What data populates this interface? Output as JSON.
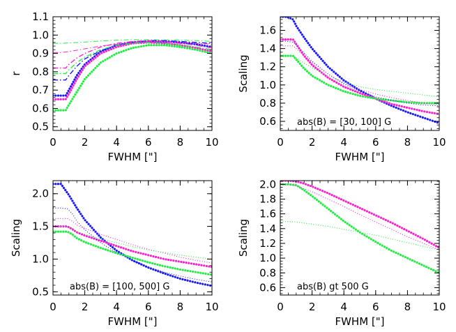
{
  "colors": {
    "blue": "#1a1aff",
    "magenta": "#ff22cc",
    "green": "#22ee44",
    "axis": "#000000"
  },
  "chart_data": [
    {
      "type": "line",
      "title": "",
      "xlabel": "FWHM [\"]",
      "ylabel": "r",
      "annotation": "",
      "xlim": [
        0,
        10
      ],
      "ylim": [
        0.48,
        1.1
      ],
      "xticks": [
        0,
        2,
        4,
        6,
        8,
        10
      ],
      "yticks": [
        0.5,
        0.6,
        0.7,
        0.8,
        0.9,
        1.0,
        1.1
      ],
      "ytick_labels": [
        "0.5",
        "0.6",
        "0.7",
        "0.8",
        "0.9",
        "1.0",
        "1.1"
      ],
      "series": [
        {
          "color": "blue",
          "style": "thick-dotted",
          "x": [
            0,
            0.5,
            0.8,
            1.0,
            1.5,
            2,
            3,
            4,
            5,
            6,
            7,
            8,
            9,
            10
          ],
          "y": [
            0.67,
            0.67,
            0.67,
            0.7,
            0.78,
            0.84,
            0.91,
            0.945,
            0.96,
            0.965,
            0.965,
            0.96,
            0.95,
            0.935
          ]
        },
        {
          "color": "magenta",
          "style": "thick-dotted",
          "x": [
            0,
            0.5,
            0.8,
            1.0,
            1.5,
            2,
            3,
            4,
            5,
            6,
            7,
            8,
            9,
            10
          ],
          "y": [
            0.65,
            0.65,
            0.65,
            0.68,
            0.76,
            0.83,
            0.9,
            0.935,
            0.955,
            0.96,
            0.955,
            0.945,
            0.93,
            0.91
          ]
        },
        {
          "color": "green",
          "style": "thick-dotted",
          "x": [
            0,
            0.5,
            0.8,
            1.0,
            1.5,
            2,
            3,
            4,
            5,
            6,
            7,
            8,
            9,
            10
          ],
          "y": [
            0.59,
            0.59,
            0.59,
            0.62,
            0.69,
            0.76,
            0.85,
            0.9,
            0.93,
            0.945,
            0.945,
            0.935,
            0.92,
            0.9
          ]
        },
        {
          "color": "blue",
          "style": "dash-dot",
          "x": [
            0,
            0.5,
            0.8,
            1.0,
            1.5,
            2,
            3,
            4,
            5,
            6,
            7,
            8,
            9,
            10
          ],
          "y": [
            0.755,
            0.755,
            0.755,
            0.78,
            0.83,
            0.87,
            0.915,
            0.945,
            0.96,
            0.97,
            0.97,
            0.965,
            0.96,
            0.955
          ]
        },
        {
          "color": "magenta",
          "style": "dash-dot",
          "x": [
            0,
            0.5,
            0.8,
            1.0,
            1.5,
            2,
            3,
            4,
            5,
            6,
            7,
            8,
            9,
            10
          ],
          "y": [
            0.82,
            0.82,
            0.82,
            0.84,
            0.875,
            0.9,
            0.935,
            0.955,
            0.965,
            0.97,
            0.965,
            0.955,
            0.945,
            0.93
          ]
        },
        {
          "color": "green",
          "style": "dash-dot",
          "x": [
            0,
            0.5,
            0.8,
            1.0,
            1.5,
            2,
            3,
            4,
            5,
            6,
            7,
            8,
            9,
            10
          ],
          "y": [
            0.79,
            0.79,
            0.79,
            0.81,
            0.85,
            0.88,
            0.92,
            0.945,
            0.955,
            0.96,
            0.955,
            0.945,
            0.935,
            0.92
          ]
        },
        {
          "color": "magenta",
          "style": "thin-dash-dot",
          "x": [
            0,
            0.5,
            1,
            2,
            3,
            4,
            5,
            6,
            7,
            8,
            9,
            10
          ],
          "y": [
            0.905,
            0.905,
            0.91,
            0.925,
            0.94,
            0.95,
            0.96,
            0.965,
            0.965,
            0.96,
            0.955,
            0.95
          ]
        },
        {
          "color": "green",
          "style": "thin-dash-dot",
          "x": [
            0,
            0.5,
            1,
            2,
            3,
            4,
            5,
            6,
            7,
            8,
            9,
            10
          ],
          "y": [
            0.955,
            0.955,
            0.957,
            0.962,
            0.968,
            0.972,
            0.975,
            0.975,
            0.974,
            0.972,
            0.97,
            0.965
          ]
        }
      ]
    },
    {
      "type": "line",
      "title": "",
      "xlabel": "FWHM [\"]",
      "ylabel": "Scaling",
      "annotation": "abs(B) = [30, 100] G",
      "xlim": [
        0,
        10
      ],
      "ylim": [
        0.5,
        1.75
      ],
      "xticks": [
        0,
        2,
        4,
        6,
        8,
        10
      ],
      "yticks": [
        0.6,
        0.8,
        1.0,
        1.2,
        1.4,
        1.6
      ],
      "ytick_labels": [
        "0.6",
        "0.8",
        "1.0",
        "1.2",
        "1.4",
        "1.6"
      ],
      "series": [
        {
          "color": "blue",
          "style": "thick-dotted",
          "x": [
            0,
            0.4,
            0.8,
            1.0,
            1.5,
            2,
            3,
            4,
            5,
            6,
            7,
            8,
            9,
            10
          ],
          "y": [
            1.75,
            1.75,
            1.72,
            1.65,
            1.52,
            1.4,
            1.2,
            1.05,
            0.94,
            0.85,
            0.77,
            0.7,
            0.64,
            0.58
          ]
        },
        {
          "color": "magenta",
          "style": "thick-dotted",
          "x": [
            0,
            0.4,
            0.8,
            1.0,
            1.5,
            2,
            3,
            4,
            5,
            6,
            7,
            8,
            9,
            10
          ],
          "y": [
            1.5,
            1.5,
            1.5,
            1.45,
            1.32,
            1.22,
            1.08,
            0.98,
            0.91,
            0.85,
            0.79,
            0.75,
            0.71,
            0.68
          ]
        },
        {
          "color": "green",
          "style": "thick-dotted",
          "x": [
            0,
            0.4,
            0.8,
            1.0,
            1.5,
            2,
            3,
            4,
            5,
            6,
            7,
            8,
            9,
            10
          ],
          "y": [
            1.32,
            1.32,
            1.32,
            1.28,
            1.18,
            1.1,
            1.0,
            0.93,
            0.88,
            0.85,
            0.83,
            0.81,
            0.8,
            0.8
          ]
        },
        {
          "color": "blue",
          "style": "thin-dotted",
          "x": [
            0,
            0.4,
            0.8,
            1.0,
            1.5,
            2,
            3,
            4,
            5,
            6,
            7,
            8,
            9,
            10
          ],
          "y": [
            1.48,
            1.48,
            1.47,
            1.44,
            1.35,
            1.26,
            1.12,
            1.01,
            0.93,
            0.87,
            0.83,
            0.8,
            0.78,
            0.77
          ]
        },
        {
          "color": "magenta",
          "style": "thin-dotted",
          "x": [
            0,
            0.4,
            0.8,
            1.0,
            1.5,
            2,
            3,
            4,
            5,
            6,
            7,
            8,
            9,
            10
          ],
          "y": [
            1.43,
            1.43,
            1.43,
            1.4,
            1.32,
            1.25,
            1.12,
            1.02,
            0.95,
            0.9,
            0.86,
            0.83,
            0.8,
            0.78
          ]
        },
        {
          "color": "green",
          "style": "thin-dotted",
          "x": [
            0,
            0.4,
            0.8,
            1.0,
            1.5,
            2,
            3,
            4,
            5,
            6,
            7,
            8,
            9,
            10
          ],
          "y": [
            1.32,
            1.32,
            1.32,
            1.3,
            1.24,
            1.19,
            1.1,
            1.03,
            0.98,
            0.95,
            0.93,
            0.91,
            0.89,
            0.87
          ]
        }
      ]
    },
    {
      "type": "line",
      "title": "",
      "xlabel": "FWHM [\"]",
      "ylabel": "Scaling",
      "annotation": "abs(B) = [100, 500] G",
      "xlim": [
        0,
        10
      ],
      "ylim": [
        0.45,
        2.2
      ],
      "xticks": [
        0,
        2,
        4,
        6,
        8,
        10
      ],
      "yticks": [
        0.5,
        1.0,
        1.5,
        2.0
      ],
      "ytick_labels": [
        "0.5",
        "1.0",
        "1.5",
        "2.0"
      ],
      "series": [
        {
          "color": "blue",
          "style": "thick-dotted",
          "x": [
            0,
            0.5,
            1.0,
            1.5,
            2,
            3,
            4,
            5,
            6,
            7,
            8,
            9,
            10
          ],
          "y": [
            2.15,
            2.15,
            1.98,
            1.78,
            1.6,
            1.33,
            1.13,
            0.98,
            0.87,
            0.78,
            0.7,
            0.64,
            0.59
          ]
        },
        {
          "color": "magenta",
          "style": "thick-dotted",
          "x": [
            0,
            0.5,
            0.9,
            1.2,
            1.5,
            2,
            3,
            4,
            5,
            6,
            7,
            8,
            9,
            10
          ],
          "y": [
            1.5,
            1.5,
            1.5,
            1.46,
            1.41,
            1.36,
            1.28,
            1.2,
            1.12,
            1.06,
            1.0,
            0.96,
            0.92,
            0.88
          ]
        },
        {
          "color": "green",
          "style": "thick-dotted",
          "x": [
            0,
            0.5,
            0.9,
            1.2,
            1.5,
            2,
            3,
            4,
            5,
            6,
            7,
            8,
            9,
            10
          ],
          "y": [
            1.42,
            1.42,
            1.42,
            1.38,
            1.32,
            1.26,
            1.17,
            1.09,
            1.02,
            0.95,
            0.89,
            0.84,
            0.8,
            0.76
          ]
        },
        {
          "color": "blue",
          "style": "thin-dotted",
          "x": [
            0,
            0.5,
            0.9,
            1.2,
            1.5,
            2,
            3,
            4,
            5,
            6,
            7,
            8,
            9,
            10
          ],
          "y": [
            1.78,
            1.78,
            1.77,
            1.7,
            1.58,
            1.45,
            1.25,
            1.1,
            0.98,
            0.88,
            0.8,
            0.74,
            0.69,
            0.65
          ]
        },
        {
          "color": "magenta",
          "style": "thin-dotted",
          "x": [
            0,
            0.5,
            0.9,
            1.2,
            1.5,
            2,
            3,
            4,
            5,
            6,
            7,
            8,
            9,
            10
          ],
          "y": [
            1.62,
            1.62,
            1.62,
            1.58,
            1.52,
            1.47,
            1.38,
            1.3,
            1.22,
            1.15,
            1.09,
            1.03,
            0.98,
            0.94
          ]
        },
        {
          "color": "green",
          "style": "thin-dotted",
          "x": [
            0,
            0.5,
            0.9,
            1.2,
            1.5,
            2,
            3,
            4,
            5,
            6,
            7,
            8,
            9,
            10
          ],
          "y": [
            1.5,
            1.5,
            1.5,
            1.47,
            1.42,
            1.38,
            1.31,
            1.25,
            1.19,
            1.14,
            1.1,
            1.06,
            1.03,
            1.0
          ]
        }
      ]
    },
    {
      "type": "line",
      "title": "",
      "xlabel": "FWHM [\"]",
      "ylabel": "Scaling",
      "annotation": "abs(B) gt 500 G",
      "xlim": [
        0,
        10
      ],
      "ylim": [
        0.5,
        2.05
      ],
      "xticks": [
        0,
        2,
        4,
        6,
        8,
        10
      ],
      "yticks": [
        0.6,
        0.8,
        1.0,
        1.2,
        1.4,
        1.6,
        1.8,
        2.0
      ],
      "ytick_labels": [
        "0.6",
        "0.8",
        "1.0",
        "1.2",
        "1.4",
        "1.6",
        "1.8",
        "2.0"
      ],
      "series": [
        {
          "color": "magenta",
          "style": "thick-dotted",
          "x": [
            0,
            0.5,
            1.0,
            1.5,
            2,
            3,
            4,
            5,
            6,
            7,
            8,
            9,
            10
          ],
          "y": [
            2.05,
            2.05,
            2.04,
            2.01,
            1.97,
            1.88,
            1.78,
            1.68,
            1.58,
            1.48,
            1.37,
            1.26,
            1.14
          ]
        },
        {
          "color": "green",
          "style": "thick-dotted",
          "x": [
            0,
            0.5,
            1.0,
            1.5,
            2,
            3,
            4,
            5,
            6,
            7,
            8,
            9,
            10
          ],
          "y": [
            2.0,
            2.0,
            1.99,
            1.92,
            1.84,
            1.67,
            1.5,
            1.35,
            1.22,
            1.1,
            1.0,
            0.9,
            0.8
          ]
        },
        {
          "color": "magenta",
          "style": "thin-dotted",
          "x": [
            0,
            1,
            2,
            3,
            4,
            5,
            6,
            7,
            8,
            9,
            10
          ],
          "y": [
            2.01,
            1.98,
            1.9,
            1.8,
            1.7,
            1.59,
            1.49,
            1.39,
            1.29,
            1.2,
            1.11
          ]
        },
        {
          "color": "green",
          "style": "thin-dotted",
          "x": [
            0,
            1,
            2,
            3,
            4,
            5,
            6,
            7,
            8,
            9,
            10
          ],
          "y": [
            1.5,
            1.49,
            1.46,
            1.43,
            1.39,
            1.35,
            1.31,
            1.26,
            1.21,
            1.16,
            1.11
          ]
        }
      ]
    }
  ]
}
